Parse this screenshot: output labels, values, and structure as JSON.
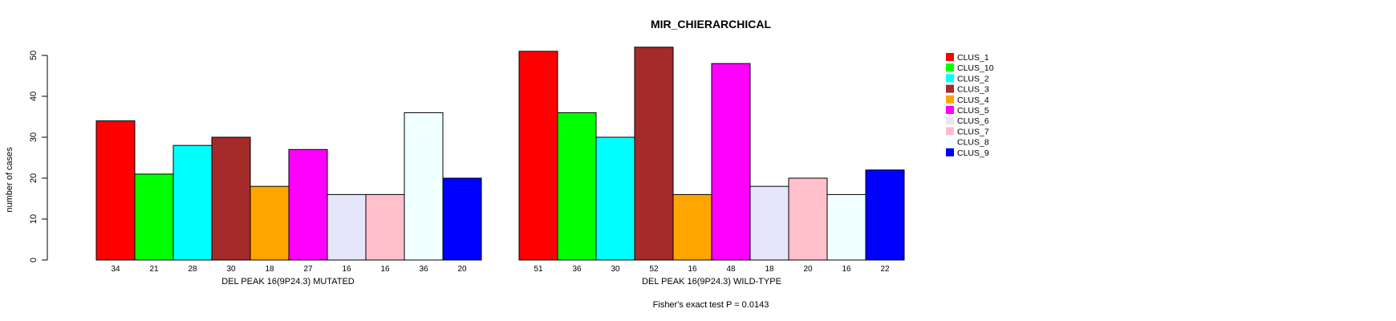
{
  "chart_data": {
    "type": "bar",
    "title": "MIR_CHIERARCHICAL",
    "ylabel": "number of cases",
    "ylim": [
      0,
      50
    ],
    "yticks": [
      0,
      10,
      20,
      30,
      40,
      50
    ],
    "footnote": "Fisher's exact test P = 0.0143",
    "clusters": [
      "CLUS_1",
      "CLUS_10",
      "CLUS_2",
      "CLUS_3",
      "CLUS_4",
      "CLUS_5",
      "CLUS_6",
      "CLUS_7",
      "CLUS_8",
      "CLUS_9"
    ],
    "colors": [
      "#ff0000",
      "#00ff00",
      "#00ffff",
      "#a52a2a",
      "#ffa500",
      "#ff00ff",
      "#e6e6fa",
      "#ffc0cb",
      "#f0ffff",
      "#0000ff"
    ],
    "groups": [
      {
        "name": "DEL PEAK 16(9P24.3) MUTATED",
        "values": [
          34,
          21,
          28,
          30,
          18,
          27,
          16,
          16,
          36,
          20
        ]
      },
      {
        "name": "DEL PEAK 16(9P24.3) WILD-TYPE",
        "values": [
          51,
          36,
          30,
          52,
          16,
          48,
          18,
          20,
          16,
          22
        ]
      }
    ],
    "legend": {
      "position": "right",
      "entries": [
        "CLUS_1",
        "CLUS_10",
        "CLUS_2",
        "CLUS_3",
        "CLUS_4",
        "CLUS_5",
        "CLUS_6",
        "CLUS_7",
        "CLUS_8",
        "CLUS_9"
      ]
    }
  }
}
